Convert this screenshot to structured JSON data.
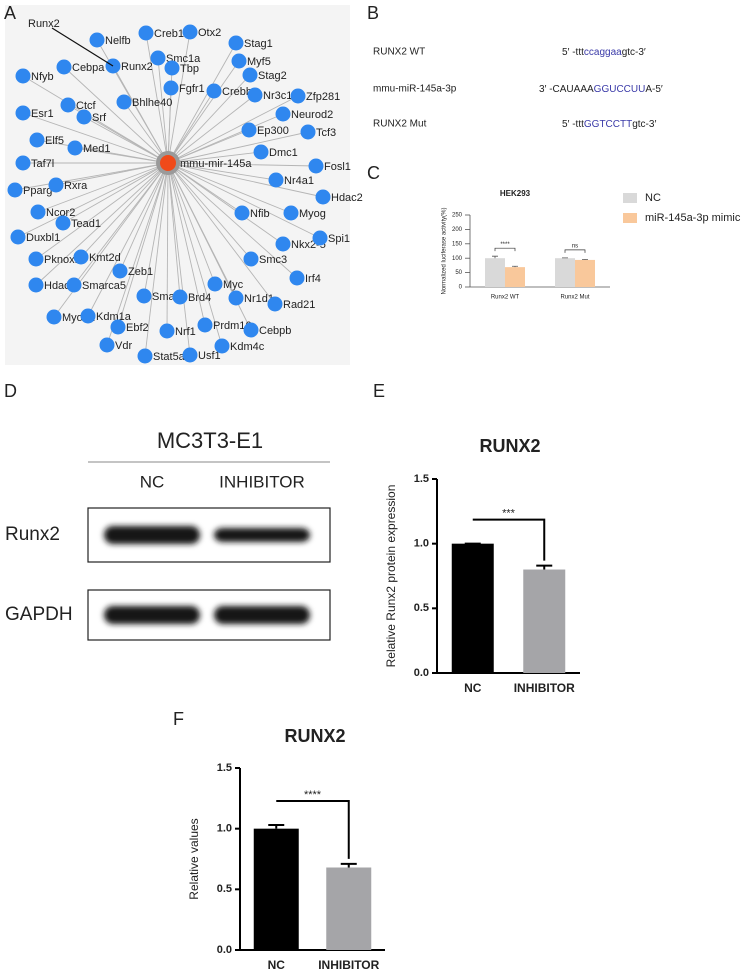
{
  "panel_labels": [
    "A",
    "B",
    "C",
    "D",
    "E",
    "F"
  ],
  "network": {
    "center": "mmu-mir-145a",
    "highlight": "Runx2",
    "nodes": [
      "Nelfb",
      "Creb1",
      "Otx2",
      "Stag1",
      "Nfyb",
      "Cebpa",
      "Runx2",
      "Smc1a",
      "Tbp",
      "Myf5",
      "Stag2",
      "Fgfr1",
      "Crebbp",
      "Nr3c1",
      "Zfp281",
      "Bhlhe40",
      "Ctcf",
      "Srf",
      "Esr1",
      "Neurod2",
      "Elf5",
      "Ep300",
      "Tcf3",
      "Med1",
      "Dmc1",
      "Taf7l",
      "Fosl1",
      "Pparg",
      "Rxra",
      "Nr4a1",
      "Hdac2",
      "Ncor2",
      "Tead1",
      "Nfib",
      "Myog",
      "Duxbl1",
      "Nkx2-5",
      "Spi1",
      "Pknox1",
      "Kmt2d",
      "Smc3",
      "Irf4",
      "Hdac3",
      "Smarca5",
      "Zeb1",
      "Myc",
      "Nr1d1",
      "Smad2",
      "Brd4",
      "Rad21",
      "Myod1",
      "Kdm1a",
      "Ebf2",
      "Prdm16",
      "Cebpb",
      "Nrf1",
      "Vdr",
      "Stat5a",
      "Usf1",
      "Kdm4c"
    ]
  },
  "sequences": {
    "rows": [
      {
        "name": "RUNX2 WT",
        "prefix": "5′ -ttt",
        "site": "ccaggaa",
        "suffix": "gtc-3′"
      },
      {
        "name": "mmu-miR-145a-3p",
        "prefix": "3′ -CAUAAA",
        "site": "GGUCCUU",
        "suffix": "A-5′"
      },
      {
        "name": "RUNX2 Mut",
        "prefix": "5′ -ttt",
        "site": "GGTCCTT",
        "suffix": "gtc-3′"
      }
    ]
  },
  "blot": {
    "title": "MC3T3-E1",
    "lanes": [
      "NC",
      "INHIBITOR"
    ],
    "proteins": [
      "Runx2",
      "GAPDH"
    ]
  },
  "chart_data": [
    {
      "type": "grouped-bar",
      "title": "HEK293",
      "y_label": "Normalized luciferase activity(%)",
      "categories": [
        "Runx2 WT",
        "Runx2 Mut"
      ],
      "series": [
        {
          "name": "NC",
          "color": "#d9d9d9",
          "values": [
            100,
            100
          ],
          "errors": [
            7,
            1
          ]
        },
        {
          "name": "miR-145a-3p mimic",
          "color": "#f9c89b",
          "values": [
            69,
            94
          ],
          "errors": [
            3,
            2
          ]
        }
      ],
      "ylim": [
        0,
        250
      ],
      "yticks": [
        0,
        50,
        100,
        150,
        200,
        250
      ],
      "legend": "right",
      "annotations": [
        "****",
        "ns"
      ]
    },
    {
      "type": "bar",
      "title": "RUNX2",
      "y_label": "Relative Runx2 protein expression",
      "categories": [
        "NC",
        "INHIBITOR"
      ],
      "colors": [
        "#000000",
        "#a5a5a8"
      ],
      "values": [
        1.0,
        0.8
      ],
      "errors": [
        0,
        0.03
      ],
      "ylim": [
        0,
        1.5
      ],
      "yticks": [
        {
          "value": 0,
          "label": "0.0"
        },
        0.5,
        {
          "value": 1,
          "label": "1.0"
        },
        1.5
      ],
      "annotations": [
        "***"
      ]
    },
    {
      "type": "bar",
      "title": "RUNX2",
      "y_label": "Relative values",
      "categories": [
        "NC",
        "INHIBITOR"
      ],
      "colors": [
        "#000000",
        "#a5a5a8"
      ],
      "values": [
        1.0,
        0.68
      ],
      "errors": [
        0.03,
        0.03
      ],
      "ylim": [
        0,
        1.5
      ],
      "yticks": [
        {
          "value": 0,
          "label": "0.0"
        },
        0.5,
        {
          "value": 1,
          "label": "1.0"
        },
        1.5
      ],
      "annotations": [
        "****"
      ]
    }
  ]
}
